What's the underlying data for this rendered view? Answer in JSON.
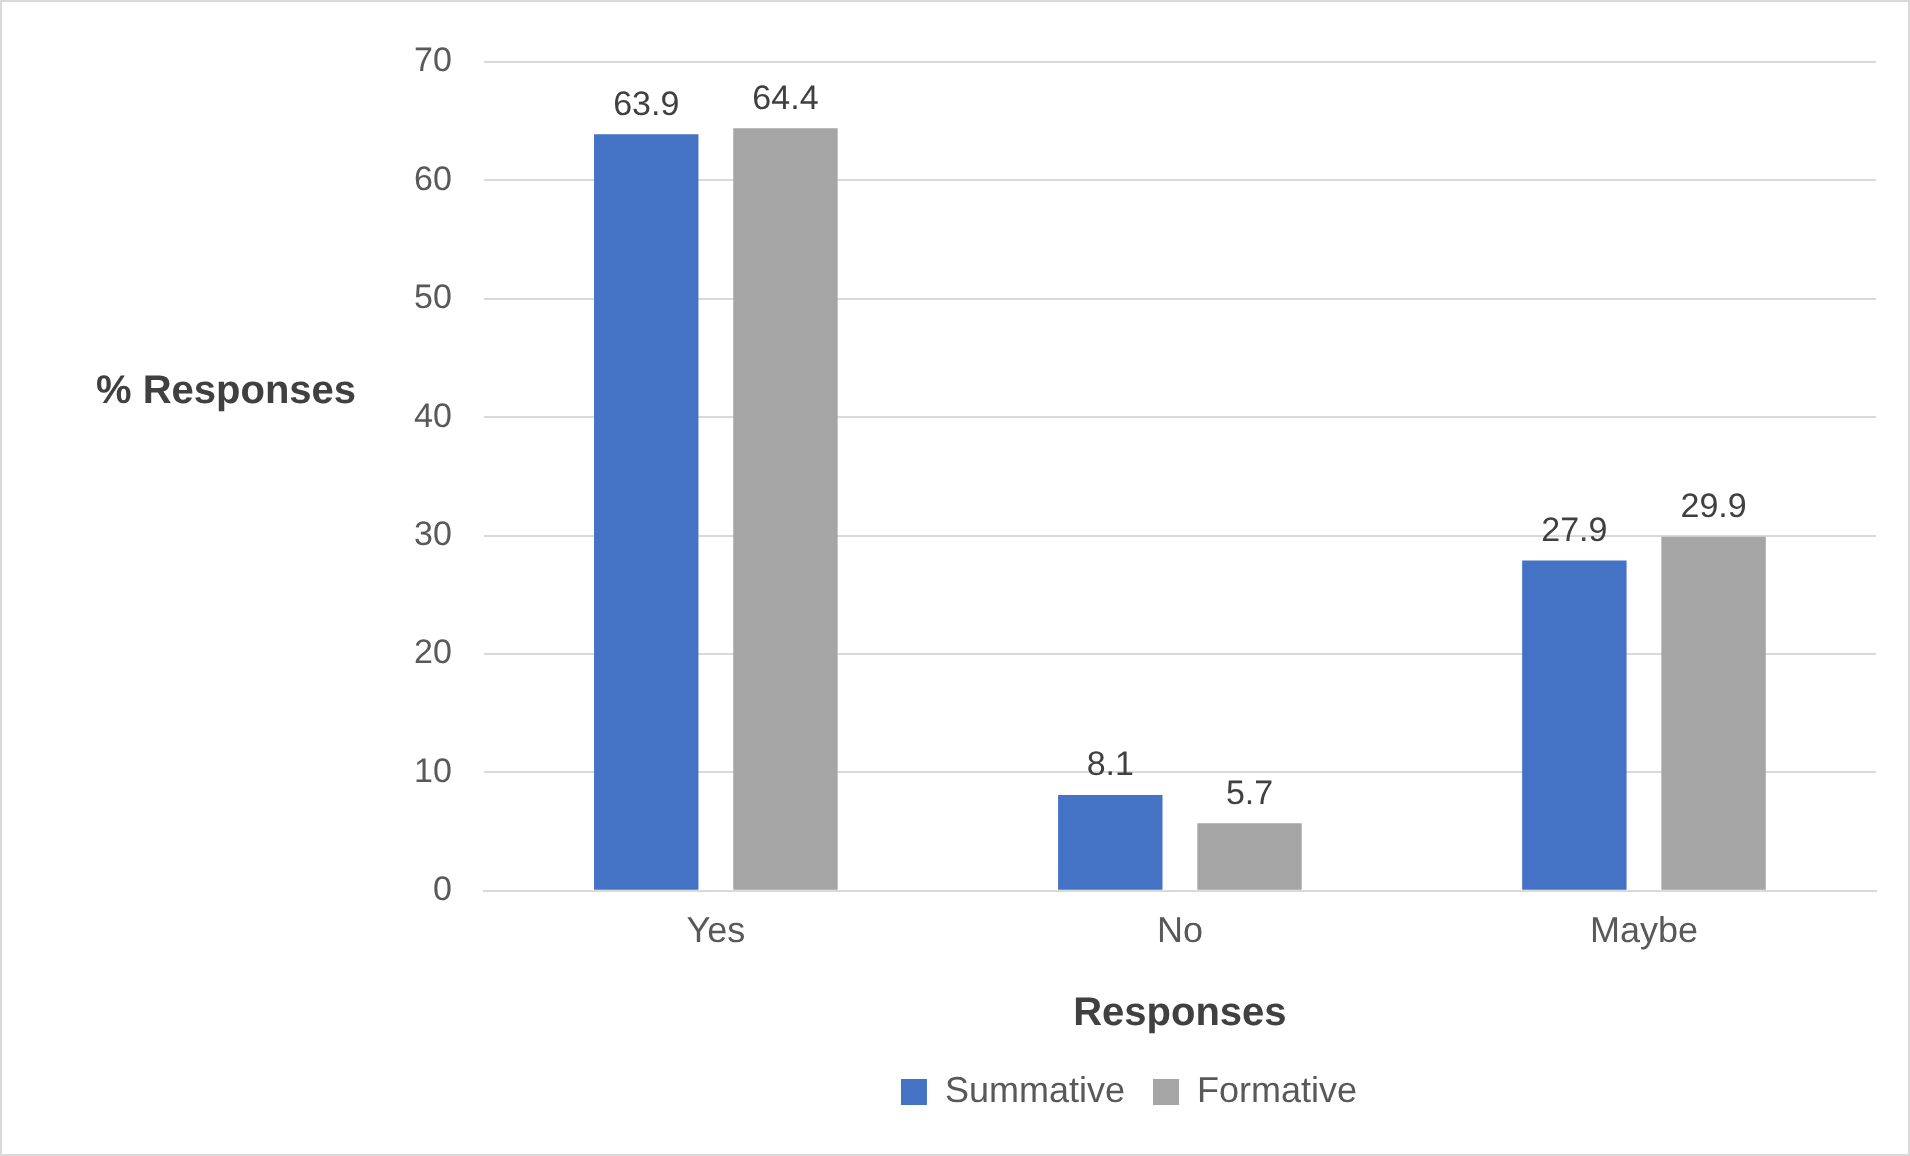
{
  "chart_data": {
    "type": "bar",
    "xlabel": "Responses",
    "ylabel": "% Responses",
    "categories": [
      "Yes",
      "No",
      "Maybe"
    ],
    "series": [
      {
        "name": "Summative",
        "color": "#4472c4",
        "values": [
          63.9,
          8.1,
          27.9
        ]
      },
      {
        "name": "Formative",
        "color": "#a5a5a5",
        "values": [
          64.4,
          5.7,
          29.9
        ]
      }
    ],
    "ylim": [
      0,
      70
    ],
    "yticks": [
      0,
      10,
      20,
      30,
      40,
      50,
      60,
      70
    ],
    "grid": "y",
    "legend": "bottom",
    "data_labels": true
  }
}
